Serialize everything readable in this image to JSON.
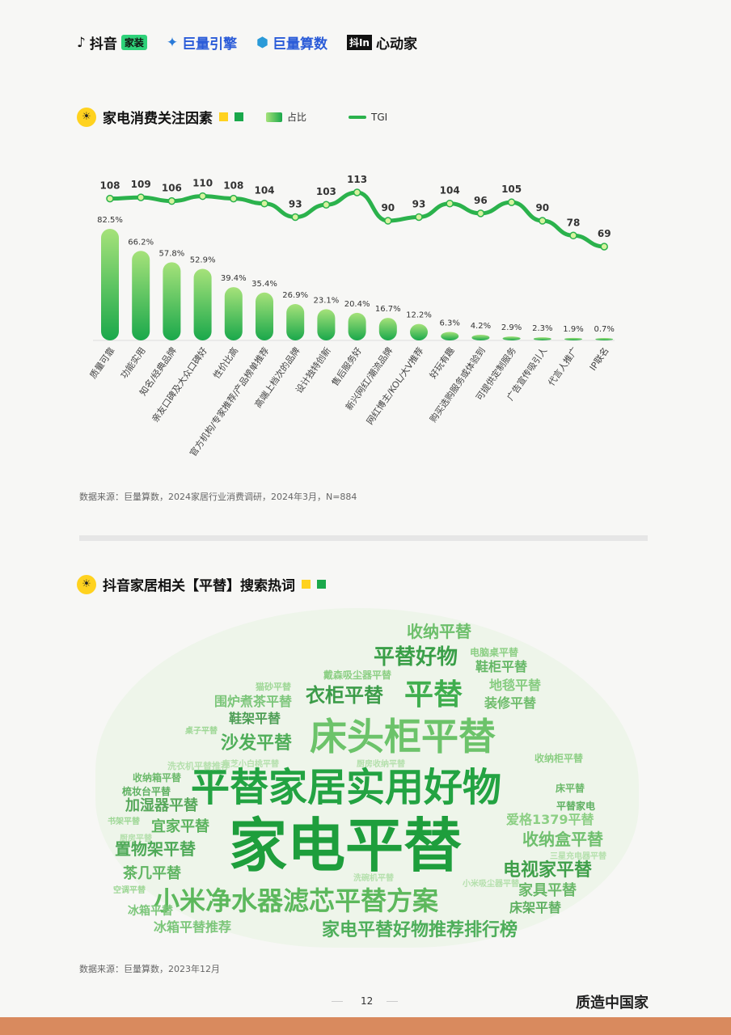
{
  "logos": [
    {
      "icon": "tiktok-note-icon",
      "text": "抖音",
      "badge": "家装"
    },
    {
      "icon": "oceanengine-icon",
      "text": "巨量引擎"
    },
    {
      "icon": "suanshu-cube-icon",
      "text": "巨量算数"
    },
    {
      "box": "抖In",
      "text": "心动家"
    }
  ],
  "chart_section": {
    "title": "家电消费关注因素",
    "legend_bar": "占比",
    "legend_line": "TGI"
  },
  "chart_data": {
    "type": "bar",
    "title": "家电消费关注因素",
    "categories": [
      "质量可靠",
      "功能实用",
      "知名/经典品牌",
      "亲友口碑及大众口碑好",
      "性价比高",
      "官方机构/专家推荐/产品榜单推荐",
      "高端上档次的品牌",
      "设计独特创新",
      "售后服务好",
      "新兴网红/潮流品牌",
      "网红博主/KOL/大V推荐",
      "好玩有趣",
      "购买选购服务或体验到",
      "可提供定制服务",
      "广告宣传吸引人",
      "代言人推广",
      "IP联名"
    ],
    "series": [
      {
        "name": "占比",
        "type": "bar",
        "values": [
          82.5,
          66.2,
          57.8,
          52.9,
          39.4,
          35.4,
          26.9,
          23.1,
          20.4,
          16.7,
          12.2,
          6.3,
          4.2,
          2.9,
          2.3,
          1.9,
          0.7
        ],
        "labels": [
          "82.5%",
          "66.2%",
          "57.8%",
          "52.9%",
          "39.4%",
          "35.4%",
          "26.9%",
          "23.1%",
          "20.4%",
          "16.7%",
          "12.2%",
          "6.3%",
          "4.2%",
          "2.9%",
          "2.3%",
          "1.9%",
          "0.7%"
        ]
      },
      {
        "name": "TGI",
        "type": "line",
        "values": [
          108,
          109,
          106,
          110,
          108,
          104,
          93,
          103,
          113,
          90,
          93,
          104,
          96,
          105,
          90,
          78,
          69
        ]
      }
    ],
    "colors": {
      "bar_light": "#a6e27a",
      "bar_dark": "#1aa84b",
      "line": "#2bb24c",
      "point": "#d8f3a0"
    }
  },
  "chart_source": "数据来源：巨量算数，2024家居行业消费调研，2024年3月，N=884",
  "cloud_section": {
    "title": "抖音家居相关【平替】搜索热词"
  },
  "cloud_words": [
    {
      "text": "家电平替",
      "color": "#1e9e3c"
    },
    {
      "text": "平替家居实用好物",
      "color": "#23a342"
    },
    {
      "text": "床头柜平替",
      "color": "#6cc36a"
    },
    {
      "text": "小米净水器滤芯平替方案",
      "color": "#5cb85c"
    },
    {
      "text": "家电平替好物推荐排行榜",
      "color": "#4eae5a"
    },
    {
      "text": "平替",
      "color": "#3fae4e"
    },
    {
      "text": "平替好物",
      "color": "#3a9f48"
    },
    {
      "text": "衣柜平替",
      "color": "#3c9c49"
    },
    {
      "text": "收纳平替",
      "color": "#6dbf6b"
    },
    {
      "text": "沙发平替",
      "color": "#4fae59"
    },
    {
      "text": "电视家平替",
      "color": "#3f9f4a"
    },
    {
      "text": "收纳盒平替",
      "color": "#6fbf6e"
    },
    {
      "text": "爱格1379平替",
      "color": "#8ccf84"
    },
    {
      "text": "置物架平替",
      "color": "#4ea957"
    },
    {
      "text": "宜家平替",
      "color": "#5cb35f"
    },
    {
      "text": "加湿器平替",
      "color": "#57a85b"
    },
    {
      "text": "茶几平替",
      "color": "#60b562"
    },
    {
      "text": "冰箱平替推荐",
      "color": "#7cc67a"
    },
    {
      "text": "家具平替",
      "color": "#6bb96a"
    },
    {
      "text": "床架平替",
      "color": "#5eb061"
    },
    {
      "text": "鞋柜平替",
      "color": "#64b765"
    },
    {
      "text": "地毯平替",
      "color": "#86cc80"
    },
    {
      "text": "装修平替",
      "color": "#6fbd6c"
    },
    {
      "text": "围炉煮茶平替",
      "color": "#7cc67a"
    },
    {
      "text": "鞋架平替",
      "color": "#4d9e55"
    },
    {
      "text": "戴森吸尘器平替",
      "color": "#8ccf84"
    },
    {
      "text": "电脑桌平替",
      "color": "#8ccf84"
    },
    {
      "text": "收纳箱平替",
      "color": "#6bb96a"
    },
    {
      "text": "梳妆台平替",
      "color": "#5eb061"
    },
    {
      "text": "床平替",
      "color": "#6bb96a"
    },
    {
      "text": "平替家电",
      "color": "#5eb061"
    },
    {
      "text": "收纳柜平替",
      "color": "#8ccf84"
    },
    {
      "text": "冰箱平替",
      "color": "#7cc67a"
    },
    {
      "text": "书架平替",
      "color": "#9dd795"
    },
    {
      "text": "洗衣机平替推荐",
      "color": "#b5e0ad"
    },
    {
      "text": "桌子平替",
      "color": "#9dd795"
    },
    {
      "text": "猫砂平替",
      "color": "#9dd795"
    },
    {
      "text": "洗碗机平替",
      "color": "#b5e0ad"
    },
    {
      "text": "空调平替",
      "color": "#9dd795"
    },
    {
      "text": "三星充电器平替",
      "color": "#b5e0ad"
    },
    {
      "text": "小米吸尘器平替",
      "color": "#b5e0ad"
    },
    {
      "text": "东芝小白桃平替",
      "color": "#b5e0ad"
    },
    {
      "text": "厨房收纳平替",
      "color": "#b5e0ad"
    },
    {
      "text": "厨房平替",
      "color": "#b5e0ad"
    }
  ],
  "cloud_source": "数据来源：巨量算数，2023年12月",
  "page_number": "12",
  "brand": "质造中国家"
}
